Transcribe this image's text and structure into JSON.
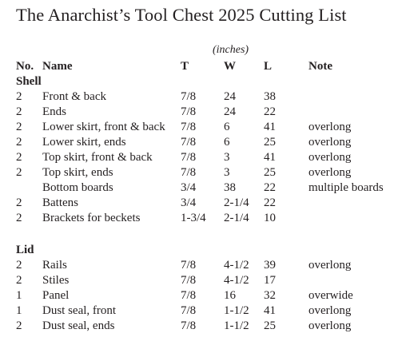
{
  "title": "The Anarchist’s Tool Chest 2025 Cutting List",
  "units": "(inches)",
  "headers": {
    "no": "No.",
    "name": "Name",
    "t": "T",
    "w": "W",
    "l": "L",
    "note": "Note"
  },
  "shell": {
    "label": "Shell",
    "rows": [
      {
        "no": "2",
        "name": "Front & back",
        "t": "7/8",
        "w": "24",
        "l": "38",
        "note": ""
      },
      {
        "no": "2",
        "name": "Ends",
        "t": "7/8",
        "w": "24",
        "l": "22",
        "note": ""
      },
      {
        "no": "2",
        "name": "Lower skirt, front & back",
        "t": "7/8",
        "w": "6",
        "l": "41",
        "note": "overlong"
      },
      {
        "no": "2",
        "name": "Lower skirt, ends",
        "t": "7/8",
        "w": "6",
        "l": "25",
        "note": "overlong"
      },
      {
        "no": "2",
        "name": "Top skirt, front & back",
        "t": "7/8",
        "w": "3",
        "l": "41",
        "note": "overlong"
      },
      {
        "no": "2",
        "name": "Top skirt, ends",
        "t": "7/8",
        "w": "3",
        "l": "25",
        "note": "overlong"
      },
      {
        "no": "",
        "name": "Bottom boards",
        "t": "3/4",
        "w": "38",
        "l": "22",
        "note": "multiple boards"
      },
      {
        "no": "2",
        "name": "Battens",
        "t": "3/4",
        "w": "2-1/4",
        "l": "22",
        "note": ""
      },
      {
        "no": "2",
        "name": "Brackets for beckets",
        "t": "1-3/4",
        "w": "2-1/4",
        "l": "10",
        "note": ""
      }
    ]
  },
  "lid": {
    "label": "Lid",
    "rows": [
      {
        "no": "2",
        "name": "Rails",
        "t": "7/8",
        "w": "4-1/2",
        "l": "39",
        "note": "overlong"
      },
      {
        "no": "2",
        "name": "Stiles",
        "t": "7/8",
        "w": "4-1/2",
        "l": "17",
        "note": ""
      },
      {
        "no": "1",
        "name": "Panel",
        "t": "7/8",
        "w": "16",
        "l": "32",
        "note": "overwide"
      },
      {
        "no": "1",
        "name": "Dust seal, front",
        "t": "7/8",
        "w": "1-1/2",
        "l": "41",
        "note": "overlong"
      },
      {
        "no": "2",
        "name": "Dust seal, ends",
        "t": "7/8",
        "w": "1-1/2",
        "l": "25",
        "note": "overlong"
      }
    ]
  }
}
